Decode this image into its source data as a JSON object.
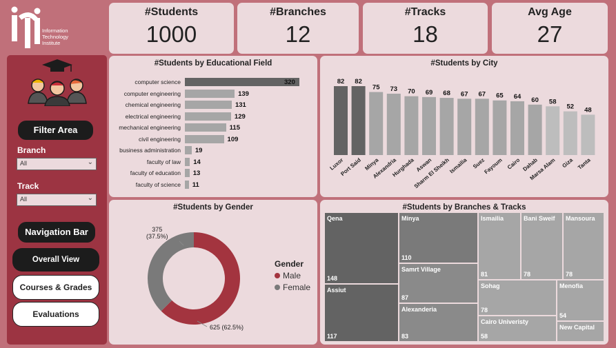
{
  "logo": {
    "text_line1": "Information",
    "text_line2": "Technology",
    "text_line3": "Institute"
  },
  "kpis": [
    {
      "title": "#Students",
      "value": "1000"
    },
    {
      "title": "#Branches",
      "value": "12"
    },
    {
      "title": "#Tracks",
      "value": "18"
    },
    {
      "title": "Avg Age",
      "value": "27"
    }
  ],
  "sidebar": {
    "filter_area": "Filter Area",
    "branch_label": "Branch",
    "branch_value": "All",
    "track_label": "Track",
    "track_value": "All",
    "navigation_bar": "Navigation Bar",
    "nav_overall": "Overall View",
    "nav_courses": "Courses & Grades",
    "nav_evaluations": "Evaluations"
  },
  "colors": {
    "male": "#a3343f",
    "female": "#7a7a7a",
    "bar": "#a6a6a6",
    "bar_dark": "#636363"
  },
  "chart_data": [
    {
      "type": "bar",
      "orientation": "horizontal",
      "title": "#Students by Educational Field",
      "categories": [
        "computer science",
        "computer engineering",
        "chemical engineering",
        "electrical engineering",
        "mechanical engineering",
        "civil engineering",
        "business administration",
        "faculty of law",
        "faculty of education",
        "faculty of science"
      ],
      "values": [
        320,
        139,
        131,
        129,
        115,
        109,
        19,
        14,
        13,
        11
      ]
    },
    {
      "type": "bar",
      "title": "#Students by City",
      "categories": [
        "Luxor",
        "Port Said",
        "Minya",
        "Alexandria",
        "Hurghada",
        "Aswan",
        "Sharm El Sheikh",
        "Ismailia",
        "Suez",
        "Fayoum",
        "Cairo",
        "Dahab",
        "Marsa Alam",
        "Giza",
        "Tanta"
      ],
      "values": [
        82,
        82,
        75,
        73,
        70,
        69,
        68,
        67,
        67,
        65,
        64,
        60,
        58,
        52,
        48
      ]
    },
    {
      "type": "pie",
      "title": "#Students by Gender",
      "legend_title": "Gender",
      "slices": [
        {
          "name": "Male",
          "value": 625,
          "label": "625 (62.5%)"
        },
        {
          "name": "Female",
          "value": 375,
          "label_line1": "375",
          "label_line2": "(37.5%)"
        }
      ]
    },
    {
      "type": "treemap",
      "title": "#Students by Branches & Tracks",
      "items": [
        {
          "name": "Qena",
          "value": 148
        },
        {
          "name": "Assiut",
          "value": 117
        },
        {
          "name": "Minya",
          "value": 110
        },
        {
          "name": "Samrt Village",
          "value": 87
        },
        {
          "name": "Alexanderia",
          "value": 83
        },
        {
          "name": "Ismailia",
          "value": 81
        },
        {
          "name": "Bani Sweif",
          "value": 78
        },
        {
          "name": "Mansoura",
          "value": 78
        },
        {
          "name": "Sohag",
          "value": 78
        },
        {
          "name": "Menofia",
          "value": 54
        },
        {
          "name": "Cairo Univeristy",
          "value": 58
        },
        {
          "name": "New Capital",
          "value": ""
        }
      ]
    }
  ]
}
